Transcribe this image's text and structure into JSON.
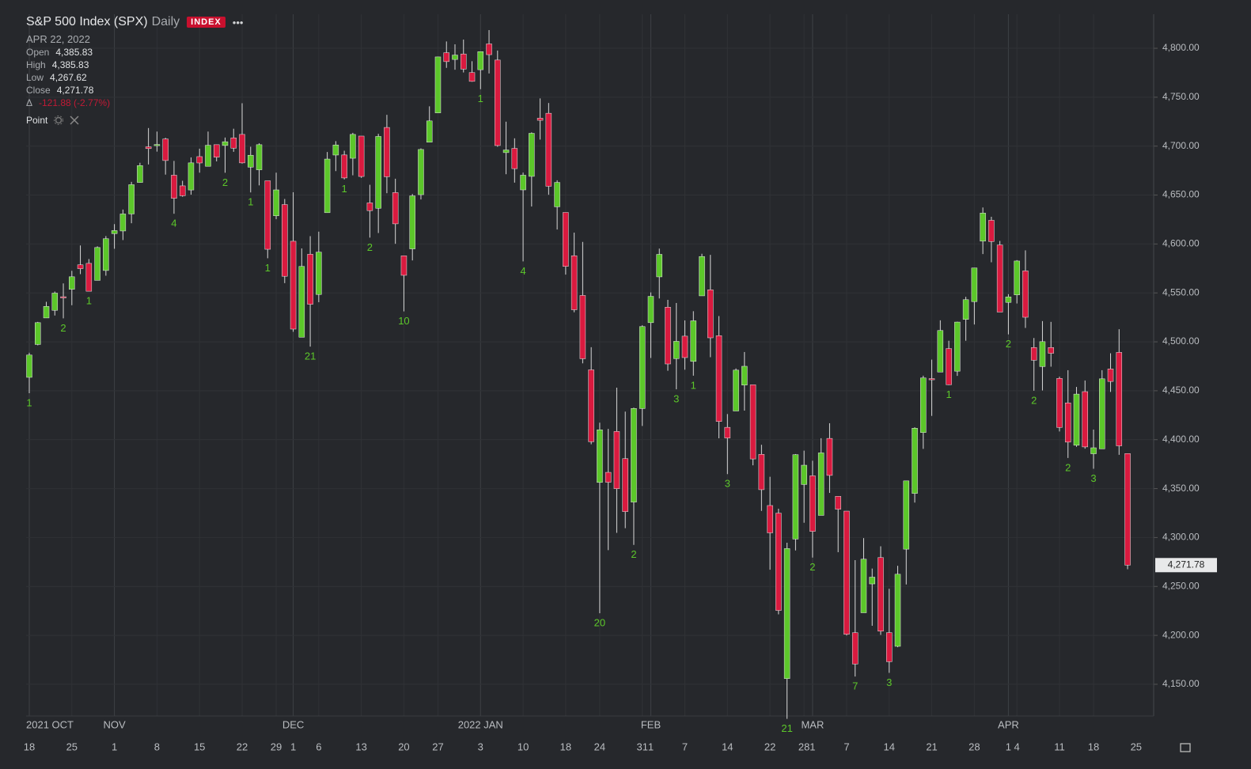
{
  "header": {
    "title": "S&P 500 Index (SPX)",
    "interval": "Daily",
    "badge": "INDEX",
    "more": "•••",
    "date": "APR 22, 2022",
    "ohlc": [
      {
        "label": "Open",
        "value": "4,385.83"
      },
      {
        "label": "High",
        "value": "4,385.83"
      },
      {
        "label": "Low",
        "value": "4,267.62"
      },
      {
        "label": "Close",
        "value": "4,271.78"
      }
    ],
    "change_label": "Δ",
    "change": "-121.88 (-2.77%)",
    "study": "Point"
  },
  "chart_data": {
    "type": "candlestick",
    "up_color": "#5cc72a",
    "down_color": "#d91a3f",
    "grid": true,
    "ylim": [
      4117.6,
      4834.8
    ],
    "yticks": [
      {
        "value": 4150,
        "label": "4,150.00"
      },
      {
        "value": 4200,
        "label": "4,200.00"
      },
      {
        "value": 4250,
        "label": "4,250.00"
      },
      {
        "value": 4300,
        "label": "4,300.00"
      },
      {
        "value": 4350,
        "label": "4,350.00"
      },
      {
        "value": 4400,
        "label": "4,400.00"
      },
      {
        "value": 4450,
        "label": "4,450.00"
      },
      {
        "value": 4500,
        "label": "4,500.00"
      },
      {
        "value": 4550,
        "label": "4,550.00"
      },
      {
        "value": 4600,
        "label": "4,600.00"
      },
      {
        "value": 4650,
        "label": "4,650.00"
      },
      {
        "value": 4700,
        "label": "4,700.00"
      },
      {
        "value": 4750,
        "label": "4,750.00"
      },
      {
        "value": 4800,
        "label": "4,800.00"
      }
    ],
    "last_price_label": "4,271.78",
    "categories": [
      "18",
      null,
      null,
      null,
      null,
      "25",
      null,
      null,
      null,
      null,
      "1",
      null,
      null,
      null,
      null,
      "8",
      null,
      null,
      null,
      null,
      "15",
      null,
      null,
      null,
      null,
      "22",
      null,
      null,
      null,
      "29",
      null,
      "1",
      null,
      null,
      "6",
      null,
      null,
      null,
      null,
      "13",
      null,
      null,
      null,
      null,
      "20",
      null,
      null,
      null,
      "27",
      null,
      null,
      null,
      null,
      "3",
      null,
      null,
      null,
      null,
      "10",
      null,
      null,
      null,
      null,
      "18",
      null,
      null,
      null,
      "24",
      null,
      null,
      null,
      null,
      "31",
      "1",
      null,
      null,
      null,
      "7",
      null,
      null,
      null,
      null,
      "14",
      null,
      null,
      null,
      null,
      "22",
      null,
      null,
      null,
      "28",
      "1",
      null,
      null,
      null,
      "7",
      null,
      null,
      null,
      null,
      "14",
      null,
      null,
      null,
      null,
      "21",
      null,
      null,
      null,
      null,
      "28",
      null,
      null,
      null,
      "1",
      "4",
      null,
      null,
      null,
      null,
      "11",
      null,
      null,
      null,
      "18",
      null,
      null,
      null,
      null
    ],
    "future_categories": [
      "25"
    ],
    "month_labels": [
      "2021 OCT",
      null,
      null,
      null,
      null,
      null,
      null,
      null,
      null,
      null,
      "NOV",
      null,
      null,
      null,
      null,
      null,
      null,
      null,
      null,
      null,
      null,
      null,
      null,
      null,
      null,
      null,
      null,
      null,
      null,
      null,
      null,
      "DEC",
      null,
      null,
      null,
      null,
      null,
      null,
      null,
      null,
      null,
      null,
      null,
      null,
      null,
      null,
      null,
      null,
      null,
      null,
      null,
      null,
      null,
      "2022 JAN",
      null,
      null,
      null,
      null,
      null,
      null,
      null,
      null,
      null,
      null,
      null,
      null,
      null,
      null,
      null,
      null,
      null,
      null,
      null,
      "FEB",
      null,
      null,
      null,
      null,
      null,
      null,
      null,
      null,
      null,
      null,
      null,
      null,
      null,
      null,
      null,
      null,
      null,
      null,
      "MAR",
      null,
      null,
      null,
      null,
      null,
      null,
      null,
      null,
      null,
      null,
      null,
      null,
      null,
      null,
      null,
      null,
      null,
      null,
      null,
      null,
      null,
      null,
      "APR",
      null,
      null,
      null,
      null,
      null,
      null,
      null,
      null,
      null,
      null,
      null,
      null,
      null,
      null
    ],
    "point_labels": [
      "1",
      null,
      null,
      null,
      "2",
      null,
      null,
      "1",
      null,
      null,
      null,
      null,
      null,
      null,
      null,
      null,
      null,
      "4",
      null,
      null,
      null,
      null,
      null,
      "2",
      null,
      null,
      "1",
      null,
      "1",
      null,
      null,
      null,
      null,
      "21",
      null,
      null,
      null,
      "1",
      null,
      null,
      "2",
      null,
      null,
      null,
      "10",
      null,
      null,
      null,
      null,
      null,
      null,
      null,
      null,
      "1",
      null,
      null,
      null,
      null,
      "4",
      null,
      null,
      null,
      null,
      null,
      null,
      null,
      null,
      "20",
      null,
      null,
      null,
      "2",
      null,
      null,
      null,
      null,
      "3",
      null,
      "1",
      null,
      null,
      null,
      "3",
      null,
      null,
      null,
      null,
      null,
      null,
      "21",
      null,
      null,
      "2",
      null,
      null,
      null,
      null,
      "7",
      null,
      null,
      null,
      "3",
      null,
      null,
      null,
      null,
      null,
      null,
      "1",
      null,
      null,
      null,
      null,
      null,
      null,
      "2",
      null,
      null,
      "2",
      null,
      null,
      null,
      "2",
      null,
      null,
      "3",
      null,
      null,
      null,
      null
    ],
    "open": [
      4463.7,
      4497.3,
      4524.4,
      4532.2,
      4546.1,
      4553.7,
      4578.7,
      4580.2,
      4562.8,
      4572.9,
      4610.6,
      4613.3,
      4630.7,
      4662.9,
      4699.3,
      4701.5,
      4707.3,
      4670.3,
      4659.4,
      4655.2,
      4689.3,
      4679.4,
      4701.5,
      4700.7,
      4708.4,
      4712,
      4678.5,
      4675.8,
      4664.6,
      4628.8,
      4640.3,
      4602.8,
      4504.7,
      4589.5,
      4548.4,
      4632,
      4690.9,
      4691,
      4687.6,
      4710.3,
      4642,
      4636.5,
      4719.1,
      4652.5,
      4587.9,
      4595,
      4650.4,
      4704,
      4734,
      4795.5,
      4788.6,
      4794.2,
      4775.2,
      4778.1,
      4804.5,
      4788,
      4693.4,
      4697.7,
      4655.3,
      4669.1,
      4728.6,
      4733.6,
      4638,
      4632.2,
      4588,
      4547.4,
      4471.4,
      4356.3,
      4366.6,
      4408.4,
      4380.6,
      4336.2,
      4431.8,
      4519.6,
      4566.4,
      4535.4,
      4482.8,
      4505.8,
      4480,
      4547,
      4553.2,
      4506.3,
      4412.6,
      4429.3,
      4455.8,
      4456.1,
      4385,
      4332.7,
      4324.9,
      4155.8,
      4298.4,
      4354.2,
      4363.1,
      4322.6,
      4401.3,
      4342.1,
      4327,
      4202.7,
      4223.1,
      4252.6,
      4279.5,
      4202.8,
      4188.8,
      4288.1,
      4345.1,
      4407.3,
      4462.4,
      4469.1,
      4493.1,
      4470,
      4522.9,
      4541.1,
      4602.9,
      4624.2,
      4599,
      4540.3,
      4548,
      4572.5,
      4494.2,
      4474.7,
      4494.2,
      4462.6,
      4437.6,
      4394.3,
      4449.1,
      4385.6,
      4390.6,
      4472.3,
      4489.2,
      4385.8
    ],
    "high": [
      4488.8,
      4520.4,
      4540.9,
      4551.4,
      4559.7,
      4572.6,
      4598.5,
      4584.6,
      4597.6,
      4608.1,
      4620.3,
      4635.2,
      4663.5,
      4683,
      4718.5,
      4714.9,
      4708.5,
      4684.9,
      4664.6,
      4688.5,
      4697.4,
      4714.9,
      4701.5,
      4708.8,
      4717.8,
      4743.8,
      4699.4,
      4702.9,
      4664.6,
      4672.9,
      4646,
      4652.9,
      4595.5,
      4608,
      4612.6,
      4694,
      4705.1,
      4695.3,
      4713.6,
      4710.3,
      4660.5,
      4712.6,
      4732,
      4666.7,
      4587.9,
      4651.1,
      4697.7,
      4740.7,
      4791.5,
      4807,
      4804.1,
      4808.9,
      4786.8,
      4796.6,
      4818.6,
      4797.7,
      4725,
      4708,
      4673,
      4714.1,
      4748.8,
      4744.1,
      4665.1,
      4632.2,
      4611.6,
      4602.1,
      4494.5,
      4417.4,
      4411,
      4453.2,
      4428.7,
      4432.7,
      4516.9,
      4550.5,
      4595.3,
      4542.9,
      4539.7,
      4521.9,
      4531.3,
      4590,
      4588.9,
      4526.3,
      4426.2,
      4472.8,
      4489.6,
      4456.1,
      4394.8,
      4362.1,
      4329.4,
      4294.7,
      4385.3,
      4388.8,
      4378.5,
      4401.5,
      4416.8,
      4342.1,
      4327,
      4276.9,
      4299.4,
      4268.3,
      4291,
      4247.6,
      4271.1,
      4358,
      4412.7,
      4465.4,
      4481.8,
      4522,
      4501.1,
      4520.6,
      4546,
      4575.7,
      4637.3,
      4627.8,
      4603.1,
      4548.7,
      4583.5,
      4593.5,
      4503.9,
      4521.2,
      4520.4,
      4464.4,
      4471,
      4453.9,
      4460.5,
      4410.3,
      4471,
      4488.3,
      4512.9,
      4385.8
    ],
    "low": [
      4447.5,
      4496.4,
      4524.4,
      4526.9,
      4524,
      4537.4,
      4569.2,
      4551.7,
      4562.8,
      4567.6,
      4595.1,
      4604,
      4621.2,
      4662.6,
      4681.3,
      4694.4,
      4670.9,
      4630.9,
      4648.3,
      4650.4,
      4672.9,
      4679.4,
      4684.4,
      4672.8,
      4694.2,
      4682.2,
      4652.7,
      4659.9,
      4585.4,
      4625.3,
      4560,
      4510.3,
      4504.7,
      4495.1,
      4540.5,
      4632,
      4674.5,
      4666,
      4670.2,
      4667.6,
      4606.5,
      4611.2,
      4651.9,
      4600.2,
      4531.1,
      4583.2,
      4645.5,
      4704,
      4734,
      4780,
      4778.1,
      4775.3,
      4765.8,
      4758.2,
      4774.3,
      4699.4,
      4671.3,
      4662.7,
      4582.2,
      4638.3,
      4706.7,
      4650.3,
      4614.8,
      4568.7,
      4530.2,
      4478,
      4395.3,
      4222.6,
      4287.1,
      4304.8,
      4309.5,
      4292.5,
      4414,
      4483.5,
      4544.3,
      4470.4,
      4451.5,
      4471.5,
      4465.4,
      4547,
      4484.3,
      4401.4,
      4364.8,
      4429.3,
      4429.7,
      4373.8,
      4327.2,
      4267.1,
      4221.5,
      4114.7,
      4286.8,
      4315.1,
      4279.5,
      4322.6,
      4345.6,
      4285,
      4199.9,
      4157.9,
      4223.1,
      4209.8,
      4200.5,
      4161.7,
      4187.9,
      4252,
      4335.7,
      4390.6,
      4424.3,
      4469.1,
      4455.8,
      4465.2,
      4501.1,
      4517.7,
      4589.7,
      4581.3,
      4530.4,
      4507.6,
      4539.2,
      4514.2,
      4450,
      4450.3,
      4474.6,
      4408.4,
      4381.3,
      4392.7,
      4390.8,
      4370.3,
      4390.6,
      4448.8,
      4384.5,
      4267.6
    ],
    "close": [
      4486.5,
      4519.6,
      4536.2,
      4549.8,
      4544.9,
      4566.5,
      4574.8,
      4551.7,
      4596.4,
      4605.4,
      4613.7,
      4630.7,
      4660.6,
      4680.1,
      4697.5,
      4701.7,
      4685.3,
      4646.7,
      4649.3,
      4682.9,
      4682.8,
      4700.9,
      4688.7,
      4704.5,
      4697.9,
      4682.9,
      4690.7,
      4701.5,
      4594.6,
      4655.3,
      4567,
      4513,
      4577.1,
      4538.4,
      4591.7,
      4686.8,
      4701.2,
      4667.5,
      4712,
      4669,
      4634.1,
      4709.9,
      4668.7,
      4620.6,
      4568,
      4649.2,
      4696.6,
      4725.8,
      4791.2,
      4786.4,
      4793.1,
      4778.7,
      4766.2,
      4796.6,
      4793.5,
      4700.6,
      4696.1,
      4677,
      4670.3,
      4713.1,
      4726.4,
      4659,
      4662.9,
      4577.1,
      4532.8,
      4482.7,
      4397.9,
      4410.1,
      4356.5,
      4349.9,
      4326.5,
      4431.9,
      4515.6,
      4546.5,
      4589.4,
      4477.4,
      4500.5,
      4483.9,
      4521.5,
      4587.2,
      4504.1,
      4418.6,
      4401.7,
      4471.1,
      4475,
      4380.3,
      4348.9,
      4304.8,
      4225.5,
      4288.7,
      4384.7,
      4373.9,
      4306.3,
      4386.5,
      4363.5,
      4328.9,
      4201.1,
      4170.7,
      4277.9,
      4259.5,
      4204.3,
      4173.1,
      4262.5,
      4357.9,
      4411.7,
      4463.1,
      4461.2,
      4511.6,
      4456.2,
      4520.2,
      4543.1,
      4575.5,
      4631.6,
      4602.5,
      4530.4,
      4545.9,
      4582.6,
      4525.1,
      4481.2,
      4500.2,
      4488.3,
      4412.5,
      4397.5,
      4446.6,
      4392.6,
      4391.7,
      4462.2,
      4459.5,
      4393.7,
      4271.8
    ]
  }
}
